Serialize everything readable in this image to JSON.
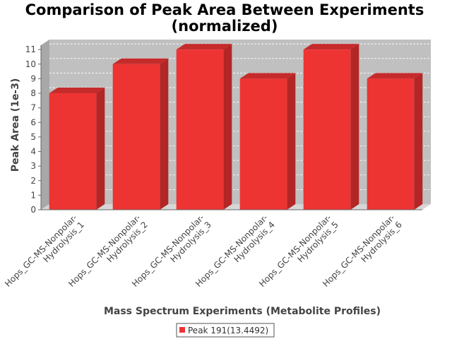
{
  "chart_data": {
    "type": "bar",
    "title_lines": [
      "Comparison of Peak Area Between Experiments",
      "(normalized)"
    ],
    "xlabel": "Mass Spectrum Experiments (Metabolite Profiles)",
    "ylabel": "Peak Area (1e-3)",
    "ylim": [
      0,
      11.3
    ],
    "yticks": [
      0,
      1,
      2,
      3,
      4,
      5,
      6,
      7,
      8,
      9,
      10,
      11
    ],
    "categories": [
      [
        "Hops_GC-MS-Nonpolar-",
        "Hydrolysis_1"
      ],
      [
        "Hops_GC-MS-Nonpolar-",
        "Hydrolysis_2"
      ],
      [
        "Hops_GC-MS-Nonpolar-",
        "Hydrolysis_3"
      ],
      [
        "Hops_GC-MS-Nonpolar-",
        "Hydrolysis_4"
      ],
      [
        "Hops_GC-MS-Nonpolar-",
        "Hydrolysis_5"
      ],
      [
        "Hops_GC-MS-Nonpolar-",
        "Hydrolysis_6"
      ]
    ],
    "series": [
      {
        "name": "Peak 191(13.4492)",
        "values": [
          8,
          10,
          11,
          9,
          11,
          9
        ],
        "color": "#ee3333"
      }
    ],
    "grid": true,
    "legend_position": "bottom",
    "plot_background": "#c0c0c0"
  }
}
